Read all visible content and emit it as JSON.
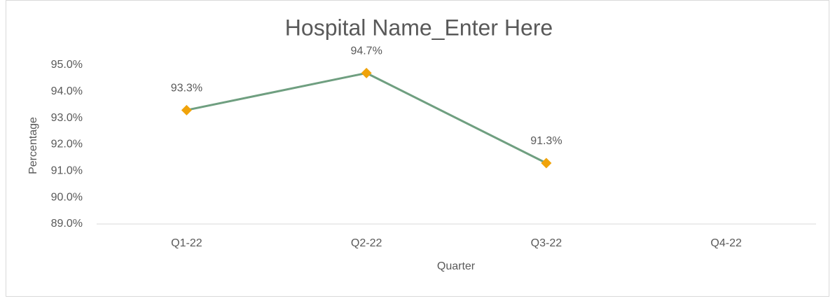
{
  "chart_data": {
    "type": "line",
    "title": "Hospital Name_Enter Here",
    "x_label": "Quarter",
    "y_label": "Percentage",
    "categories": [
      "Q1-22",
      "Q2-22",
      "Q3-22",
      "Q4-22"
    ],
    "series": [
      {
        "name": "Percentage",
        "color": "#6f9f80",
        "marker_color": "#f0a30a",
        "values": [
          93.3,
          94.7,
          91.3,
          null
        ],
        "value_labels": [
          "93.3%",
          "94.7%",
          "91.3%",
          null
        ]
      }
    ],
    "ylim": [
      89,
      95
    ],
    "yticks": [
      {
        "value": 89,
        "label": "89.0%"
      },
      {
        "value": 90,
        "label": "90.0%"
      },
      {
        "value": 91,
        "label": "91.0%"
      },
      {
        "value": 92,
        "label": "92.0%"
      },
      {
        "value": 93,
        "label": "93.0%"
      },
      {
        "value": 94,
        "label": "94.0%"
      },
      {
        "value": 95,
        "label": "95.0%"
      }
    ],
    "grid": false
  }
}
